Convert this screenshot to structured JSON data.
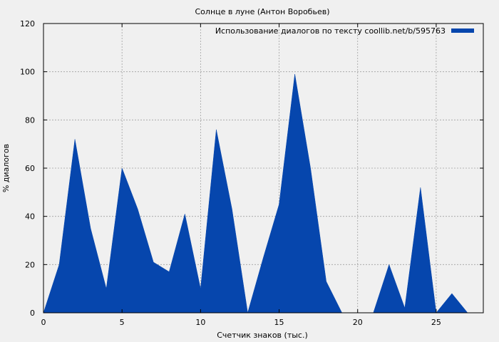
{
  "chart_data": {
    "type": "area",
    "title": "Солнце в луне (Антон Воробьев)",
    "xlabel": "Счетчик знаков (тыс.)",
    "ylabel": "% диалогов",
    "xlim": [
      0,
      28
    ],
    "ylim": [
      0,
      120
    ],
    "xticks": [
      0,
      5,
      10,
      15,
      20,
      25
    ],
    "yticks": [
      0,
      20,
      40,
      60,
      80,
      100,
      120
    ],
    "grid": true,
    "legend_position": "top-right",
    "series": [
      {
        "name": "Использование диалогов по тексту coollib.net/b/595763",
        "color": "#0646ad",
        "x": [
          0,
          1,
          2,
          3,
          4,
          5,
          6,
          7,
          8,
          9,
          10,
          11,
          12,
          13,
          14,
          15,
          16,
          17,
          18,
          19,
          20,
          21,
          22,
          23,
          24,
          25,
          26,
          27
        ],
        "y": [
          0,
          20,
          72,
          35,
          10,
          60,
          43,
          21,
          17,
          41,
          10,
          76,
          43,
          0,
          23,
          45,
          99,
          60,
          13,
          0,
          0,
          0,
          20,
          2,
          52,
          0,
          8,
          0
        ]
      }
    ]
  }
}
